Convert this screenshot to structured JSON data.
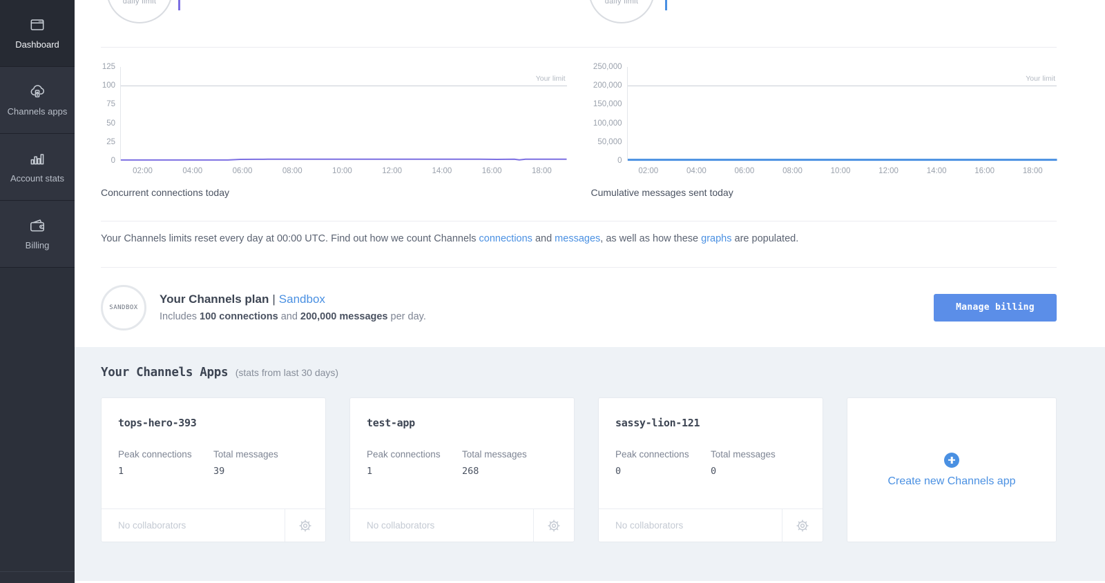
{
  "colors": {
    "accent_blue": "#4A90E2",
    "button_blue": "#5B8EE8",
    "purple": "#7C6FE2",
    "sidebar_bg": "#2C303A",
    "section_bg": "#EEF2F6"
  },
  "sidebar": {
    "items": [
      {
        "label": "Dashboard"
      },
      {
        "label": "Channels apps"
      },
      {
        "label": "Account stats"
      },
      {
        "label": "Billing"
      }
    ]
  },
  "gauges": [
    {
      "label": "daily limit",
      "marker_color": "#7C6FE2"
    },
    {
      "label": "daily limit",
      "marker_color": "#4A90E2"
    }
  ],
  "chart_data": [
    {
      "type": "line",
      "title": "Concurrent connections today",
      "ylabel": "",
      "xlabel": "",
      "ylim": [
        0,
        125
      ],
      "yticks": [
        "125",
        "100",
        "75",
        "50",
        "25",
        "0"
      ],
      "xlim": [
        1.1,
        19
      ],
      "xticks": [
        "02:00",
        "04:00",
        "06:00",
        "08:00",
        "10:00",
        "12:00",
        "14:00",
        "16:00",
        "18:00"
      ],
      "limit": 100,
      "limit_label": "Your limit",
      "color": "#7C6FE2",
      "stroke_width": 2,
      "grid": false,
      "legend_position": "none",
      "points": [
        [
          1.1,
          1
        ],
        [
          2,
          1
        ],
        [
          3,
          1
        ],
        [
          4,
          1
        ],
        [
          5,
          1
        ],
        [
          5.4,
          1
        ],
        [
          5.9,
          1.8
        ],
        [
          6.5,
          1.9
        ],
        [
          7,
          2
        ],
        [
          8,
          2
        ],
        [
          9,
          2
        ],
        [
          10,
          2
        ],
        [
          11,
          2
        ],
        [
          12,
          2
        ],
        [
          13,
          2
        ],
        [
          14,
          2
        ],
        [
          15,
          2
        ],
        [
          15.5,
          2.1
        ],
        [
          16.2,
          1.8
        ],
        [
          16.9,
          2
        ],
        [
          17.1,
          1.1
        ],
        [
          17.35,
          2
        ],
        [
          18,
          2
        ],
        [
          19,
          2
        ]
      ]
    },
    {
      "type": "line",
      "title": "Cumulative messages sent today",
      "ylabel": "",
      "xlabel": "",
      "ylim": [
        0,
        250000
      ],
      "yticks": [
        "250,000",
        "200,000",
        "150,000",
        "100,000",
        "50,000",
        "0"
      ],
      "xlim": [
        1.1,
        19
      ],
      "xticks": [
        "02:00",
        "04:00",
        "06:00",
        "08:00",
        "10:00",
        "12:00",
        "14:00",
        "16:00",
        "18:00"
      ],
      "limit": 200000,
      "limit_label": "Your limit",
      "color": "#4A90E2",
      "stroke_width": 3,
      "grid": false,
      "legend_position": "none",
      "points": [
        [
          1.1,
          2500
        ],
        [
          5,
          2500
        ],
        [
          10,
          2500
        ],
        [
          15,
          2500
        ],
        [
          19,
          2500
        ]
      ]
    }
  ],
  "note": {
    "pre": "Your Channels limits reset every day at 00:00 UTC. Find out how we count Channels ",
    "link1": "connections",
    "mid1": " and ",
    "link2": "messages",
    "mid2": ", as well as how these ",
    "link3": "graphs",
    "post": " are populated."
  },
  "plan": {
    "badge": "SANDBOX",
    "title": "Your Channels plan",
    "separator": "|",
    "name": "Sandbox",
    "desc_pre": "Includes ",
    "desc_strong1": "100 connections",
    "desc_mid": " and ",
    "desc_strong2": "200,000 messages",
    "desc_post": " per day.",
    "button": "Manage billing"
  },
  "apps": {
    "heading": "Your Channels Apps",
    "subheading": "(stats from last 30 days)",
    "peak_label": "Peak connections",
    "total_label": "Total messages",
    "footer_label": "No collaborators",
    "create_label": "Create new Channels app",
    "cards": [
      {
        "name": "tops-hero-393",
        "peak": "1",
        "total": "39"
      },
      {
        "name": "test-app",
        "peak": "1",
        "total": "268"
      },
      {
        "name": "sassy-lion-121",
        "peak": "0",
        "total": "0"
      }
    ]
  }
}
